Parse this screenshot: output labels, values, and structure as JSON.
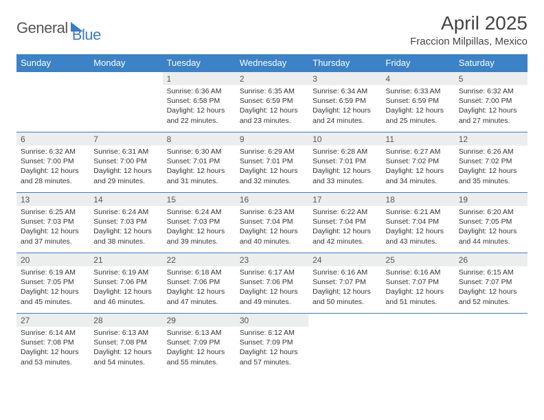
{
  "logo": {
    "part1": "General",
    "part2": "Blue"
  },
  "title": "April 2025",
  "location": "Fraccion Milpillas, Mexico",
  "colors": {
    "header_bg": "#3b82c7",
    "header_text": "#ffffff",
    "border": "#3b7cc4",
    "daynum_bg": "#eceded",
    "text": "#333333",
    "logo_gray": "#555555",
    "logo_blue": "#3b7cc4",
    "page_bg": "#ffffff"
  },
  "typography": {
    "title_fontsize": 28,
    "location_fontsize": 15,
    "weekday_fontsize": 13,
    "daynum_fontsize": 12,
    "content_fontsize": 10.5
  },
  "weekdays": [
    "Sunday",
    "Monday",
    "Tuesday",
    "Wednesday",
    "Thursday",
    "Friday",
    "Saturday"
  ],
  "weeks": [
    [
      {
        "day": "",
        "sunrise": "",
        "sunset": "",
        "daylight": ""
      },
      {
        "day": "",
        "sunrise": "",
        "sunset": "",
        "daylight": ""
      },
      {
        "day": "1",
        "sunrise": "Sunrise: 6:36 AM",
        "sunset": "Sunset: 6:58 PM",
        "daylight": "Daylight: 12 hours and 22 minutes."
      },
      {
        "day": "2",
        "sunrise": "Sunrise: 6:35 AM",
        "sunset": "Sunset: 6:59 PM",
        "daylight": "Daylight: 12 hours and 23 minutes."
      },
      {
        "day": "3",
        "sunrise": "Sunrise: 6:34 AM",
        "sunset": "Sunset: 6:59 PM",
        "daylight": "Daylight: 12 hours and 24 minutes."
      },
      {
        "day": "4",
        "sunrise": "Sunrise: 6:33 AM",
        "sunset": "Sunset: 6:59 PM",
        "daylight": "Daylight: 12 hours and 25 minutes."
      },
      {
        "day": "5",
        "sunrise": "Sunrise: 6:32 AM",
        "sunset": "Sunset: 7:00 PM",
        "daylight": "Daylight: 12 hours and 27 minutes."
      }
    ],
    [
      {
        "day": "6",
        "sunrise": "Sunrise: 6:32 AM",
        "sunset": "Sunset: 7:00 PM",
        "daylight": "Daylight: 12 hours and 28 minutes."
      },
      {
        "day": "7",
        "sunrise": "Sunrise: 6:31 AM",
        "sunset": "Sunset: 7:00 PM",
        "daylight": "Daylight: 12 hours and 29 minutes."
      },
      {
        "day": "8",
        "sunrise": "Sunrise: 6:30 AM",
        "sunset": "Sunset: 7:01 PM",
        "daylight": "Daylight: 12 hours and 31 minutes."
      },
      {
        "day": "9",
        "sunrise": "Sunrise: 6:29 AM",
        "sunset": "Sunset: 7:01 PM",
        "daylight": "Daylight: 12 hours and 32 minutes."
      },
      {
        "day": "10",
        "sunrise": "Sunrise: 6:28 AM",
        "sunset": "Sunset: 7:01 PM",
        "daylight": "Daylight: 12 hours and 33 minutes."
      },
      {
        "day": "11",
        "sunrise": "Sunrise: 6:27 AM",
        "sunset": "Sunset: 7:02 PM",
        "daylight": "Daylight: 12 hours and 34 minutes."
      },
      {
        "day": "12",
        "sunrise": "Sunrise: 6:26 AM",
        "sunset": "Sunset: 7:02 PM",
        "daylight": "Daylight: 12 hours and 35 minutes."
      }
    ],
    [
      {
        "day": "13",
        "sunrise": "Sunrise: 6:25 AM",
        "sunset": "Sunset: 7:03 PM",
        "daylight": "Daylight: 12 hours and 37 minutes."
      },
      {
        "day": "14",
        "sunrise": "Sunrise: 6:24 AM",
        "sunset": "Sunset: 7:03 PM",
        "daylight": "Daylight: 12 hours and 38 minutes."
      },
      {
        "day": "15",
        "sunrise": "Sunrise: 6:24 AM",
        "sunset": "Sunset: 7:03 PM",
        "daylight": "Daylight: 12 hours and 39 minutes."
      },
      {
        "day": "16",
        "sunrise": "Sunrise: 6:23 AM",
        "sunset": "Sunset: 7:04 PM",
        "daylight": "Daylight: 12 hours and 40 minutes."
      },
      {
        "day": "17",
        "sunrise": "Sunrise: 6:22 AM",
        "sunset": "Sunset: 7:04 PM",
        "daylight": "Daylight: 12 hours and 42 minutes."
      },
      {
        "day": "18",
        "sunrise": "Sunrise: 6:21 AM",
        "sunset": "Sunset: 7:04 PM",
        "daylight": "Daylight: 12 hours and 43 minutes."
      },
      {
        "day": "19",
        "sunrise": "Sunrise: 6:20 AM",
        "sunset": "Sunset: 7:05 PM",
        "daylight": "Daylight: 12 hours and 44 minutes."
      }
    ],
    [
      {
        "day": "20",
        "sunrise": "Sunrise: 6:19 AM",
        "sunset": "Sunset: 7:05 PM",
        "daylight": "Daylight: 12 hours and 45 minutes."
      },
      {
        "day": "21",
        "sunrise": "Sunrise: 6:19 AM",
        "sunset": "Sunset: 7:06 PM",
        "daylight": "Daylight: 12 hours and 46 minutes."
      },
      {
        "day": "22",
        "sunrise": "Sunrise: 6:18 AM",
        "sunset": "Sunset: 7:06 PM",
        "daylight": "Daylight: 12 hours and 47 minutes."
      },
      {
        "day": "23",
        "sunrise": "Sunrise: 6:17 AM",
        "sunset": "Sunset: 7:06 PM",
        "daylight": "Daylight: 12 hours and 49 minutes."
      },
      {
        "day": "24",
        "sunrise": "Sunrise: 6:16 AM",
        "sunset": "Sunset: 7:07 PM",
        "daylight": "Daylight: 12 hours and 50 minutes."
      },
      {
        "day": "25",
        "sunrise": "Sunrise: 6:16 AM",
        "sunset": "Sunset: 7:07 PM",
        "daylight": "Daylight: 12 hours and 51 minutes."
      },
      {
        "day": "26",
        "sunrise": "Sunrise: 6:15 AM",
        "sunset": "Sunset: 7:07 PM",
        "daylight": "Daylight: 12 hours and 52 minutes."
      }
    ],
    [
      {
        "day": "27",
        "sunrise": "Sunrise: 6:14 AM",
        "sunset": "Sunset: 7:08 PM",
        "daylight": "Daylight: 12 hours and 53 minutes."
      },
      {
        "day": "28",
        "sunrise": "Sunrise: 6:13 AM",
        "sunset": "Sunset: 7:08 PM",
        "daylight": "Daylight: 12 hours and 54 minutes."
      },
      {
        "day": "29",
        "sunrise": "Sunrise: 6:13 AM",
        "sunset": "Sunset: 7:09 PM",
        "daylight": "Daylight: 12 hours and 55 minutes."
      },
      {
        "day": "30",
        "sunrise": "Sunrise: 6:12 AM",
        "sunset": "Sunset: 7:09 PM",
        "daylight": "Daylight: 12 hours and 57 minutes."
      },
      {
        "day": "",
        "sunrise": "",
        "sunset": "",
        "daylight": ""
      },
      {
        "day": "",
        "sunrise": "",
        "sunset": "",
        "daylight": ""
      },
      {
        "day": "",
        "sunrise": "",
        "sunset": "",
        "daylight": ""
      }
    ]
  ]
}
